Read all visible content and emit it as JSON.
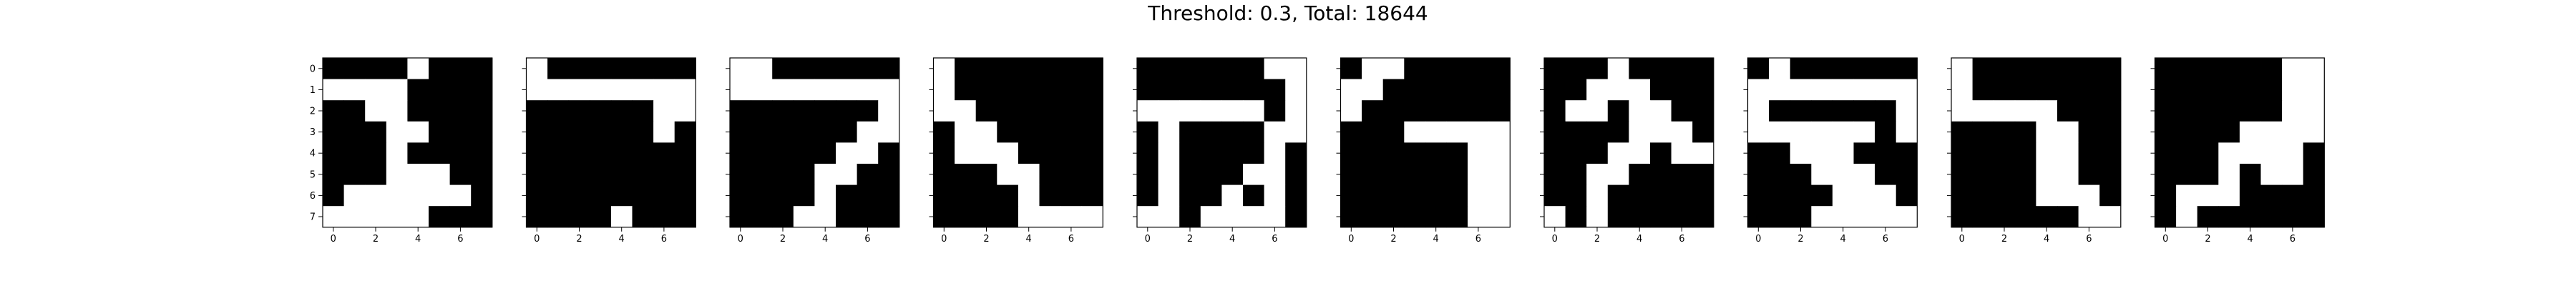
{
  "figure": {
    "title": "Threshold: 0.3, Total: 18644"
  },
  "chart_data": {
    "type": "heatmap",
    "title": "Threshold: 0.3, Total: 18644",
    "colormap": {
      "0": "#000000",
      "1": "#ffffff"
    },
    "x_ticks": [
      "0",
      "2",
      "4",
      "6"
    ],
    "y_ticks": [
      "0",
      "1",
      "2",
      "3",
      "4",
      "5",
      "6",
      "7"
    ],
    "matrices": [
      [
        [
          0,
          0,
          0,
          0,
          1,
          0,
          0,
          0
        ],
        [
          1,
          1,
          1,
          1,
          0,
          0,
          0,
          0
        ],
        [
          0,
          0,
          1,
          1,
          0,
          0,
          0,
          0
        ],
        [
          0,
          0,
          0,
          1,
          1,
          0,
          0,
          0
        ],
        [
          0,
          0,
          0,
          1,
          0,
          0,
          0,
          0
        ],
        [
          0,
          0,
          0,
          1,
          1,
          1,
          0,
          0
        ],
        [
          0,
          1,
          1,
          1,
          1,
          1,
          1,
          0
        ],
        [
          1,
          1,
          1,
          1,
          1,
          0,
          0,
          0
        ]
      ],
      [
        [
          1,
          0,
          0,
          0,
          0,
          0,
          0,
          0
        ],
        [
          1,
          1,
          1,
          1,
          1,
          1,
          1,
          1
        ],
        [
          0,
          0,
          0,
          0,
          0,
          0,
          1,
          1
        ],
        [
          0,
          0,
          0,
          0,
          0,
          0,
          1,
          0
        ],
        [
          0,
          0,
          0,
          0,
          0,
          0,
          0,
          0
        ],
        [
          0,
          0,
          0,
          0,
          0,
          0,
          0,
          0
        ],
        [
          0,
          0,
          0,
          0,
          0,
          0,
          0,
          0
        ],
        [
          0,
          0,
          0,
          0,
          1,
          0,
          0,
          0
        ]
      ],
      [
        [
          1,
          1,
          0,
          0,
          0,
          0,
          0,
          0
        ],
        [
          1,
          1,
          1,
          1,
          1,
          1,
          1,
          1
        ],
        [
          0,
          0,
          0,
          0,
          0,
          0,
          0,
          1
        ],
        [
          0,
          0,
          0,
          0,
          0,
          0,
          1,
          1
        ],
        [
          0,
          0,
          0,
          0,
          0,
          1,
          1,
          0
        ],
        [
          0,
          0,
          0,
          0,
          1,
          1,
          0,
          0
        ],
        [
          0,
          0,
          0,
          0,
          1,
          0,
          0,
          0
        ],
        [
          0,
          0,
          0,
          1,
          1,
          0,
          0,
          0
        ]
      ],
      [
        [
          1,
          0,
          0,
          0,
          0,
          0,
          0,
          0
        ],
        [
          1,
          0,
          0,
          0,
          0,
          0,
          0,
          0
        ],
        [
          1,
          1,
          0,
          0,
          0,
          0,
          0,
          0
        ],
        [
          0,
          1,
          1,
          0,
          0,
          0,
          0,
          0
        ],
        [
          0,
          1,
          1,
          1,
          0,
          0,
          0,
          0
        ],
        [
          0,
          0,
          0,
          1,
          1,
          0,
          0,
          0
        ],
        [
          0,
          0,
          0,
          0,
          1,
          0,
          0,
          0
        ],
        [
          0,
          0,
          0,
          0,
          1,
          1,
          1,
          1
        ]
      ],
      [
        [
          0,
          0,
          0,
          0,
          0,
          0,
          1,
          1
        ],
        [
          0,
          0,
          0,
          0,
          0,
          0,
          0,
          1
        ],
        [
          1,
          1,
          1,
          1,
          1,
          1,
          0,
          1
        ],
        [
          0,
          1,
          0,
          0,
          0,
          0,
          1,
          1
        ],
        [
          0,
          1,
          0,
          0,
          0,
          0,
          1,
          0
        ],
        [
          0,
          1,
          0,
          0,
          0,
          1,
          1,
          0
        ],
        [
          0,
          1,
          0,
          0,
          1,
          0,
          1,
          0
        ],
        [
          1,
          1,
          0,
          1,
          1,
          1,
          1,
          0
        ]
      ],
      [
        [
          0,
          1,
          1,
          0,
          0,
          0,
          0,
          0
        ],
        [
          1,
          1,
          0,
          0,
          0,
          0,
          0,
          0
        ],
        [
          1,
          0,
          0,
          0,
          0,
          0,
          0,
          0
        ],
        [
          0,
          0,
          0,
          1,
          1,
          1,
          1,
          1
        ],
        [
          0,
          0,
          0,
          0,
          0,
          0,
          1,
          1
        ],
        [
          0,
          0,
          0,
          0,
          0,
          0,
          1,
          1
        ],
        [
          0,
          0,
          0,
          0,
          0,
          0,
          1,
          1
        ],
        [
          0,
          0,
          0,
          0,
          0,
          0,
          1,
          1
        ]
      ],
      [
        [
          0,
          0,
          0,
          1,
          0,
          0,
          0,
          0
        ],
        [
          0,
          0,
          1,
          1,
          1,
          0,
          0,
          0
        ],
        [
          0,
          1,
          1,
          0,
          1,
          1,
          0,
          0
        ],
        [
          0,
          0,
          0,
          0,
          1,
          1,
          1,
          0
        ],
        [
          0,
          0,
          0,
          1,
          1,
          0,
          1,
          1
        ],
        [
          0,
          0,
          1,
          1,
          0,
          0,
          0,
          0
        ],
        [
          0,
          0,
          1,
          0,
          0,
          0,
          0,
          0
        ],
        [
          1,
          0,
          1,
          0,
          0,
          0,
          0,
          0
        ]
      ],
      [
        [
          0,
          1,
          0,
          0,
          0,
          0,
          0,
          0
        ],
        [
          1,
          1,
          1,
          1,
          1,
          1,
          1,
          1
        ],
        [
          1,
          0,
          0,
          0,
          0,
          0,
          0,
          1
        ],
        [
          1,
          1,
          1,
          1,
          1,
          1,
          0,
          1
        ],
        [
          0,
          0,
          1,
          1,
          1,
          0,
          0,
          0
        ],
        [
          0,
          0,
          0,
          1,
          1,
          1,
          0,
          0
        ],
        [
          0,
          0,
          0,
          0,
          1,
          1,
          1,
          0
        ],
        [
          0,
          0,
          0,
          1,
          1,
          1,
          1,
          1
        ]
      ],
      [
        [
          1,
          0,
          0,
          0,
          0,
          0,
          0,
          0
        ],
        [
          1,
          0,
          0,
          0,
          0,
          0,
          0,
          0
        ],
        [
          1,
          1,
          1,
          1,
          1,
          0,
          0,
          0
        ],
        [
          0,
          0,
          0,
          0,
          1,
          1,
          0,
          0
        ],
        [
          0,
          0,
          0,
          0,
          1,
          1,
          0,
          0
        ],
        [
          0,
          0,
          0,
          0,
          1,
          1,
          0,
          0
        ],
        [
          0,
          0,
          0,
          0,
          1,
          1,
          1,
          0
        ],
        [
          0,
          0,
          0,
          0,
          0,
          0,
          1,
          1
        ]
      ],
      [
        [
          0,
          0,
          0,
          0,
          0,
          0,
          1,
          1
        ],
        [
          0,
          0,
          0,
          0,
          0,
          0,
          1,
          1
        ],
        [
          0,
          0,
          0,
          0,
          0,
          0,
          1,
          1
        ],
        [
          0,
          0,
          0,
          0,
          1,
          1,
          1,
          1
        ],
        [
          0,
          0,
          0,
          1,
          1,
          1,
          1,
          0
        ],
        [
          0,
          0,
          0,
          1,
          0,
          1,
          1,
          0
        ],
        [
          0,
          1,
          1,
          1,
          0,
          0,
          0,
          0
        ],
        [
          0,
          1,
          0,
          0,
          0,
          0,
          0,
          0
        ]
      ]
    ]
  }
}
